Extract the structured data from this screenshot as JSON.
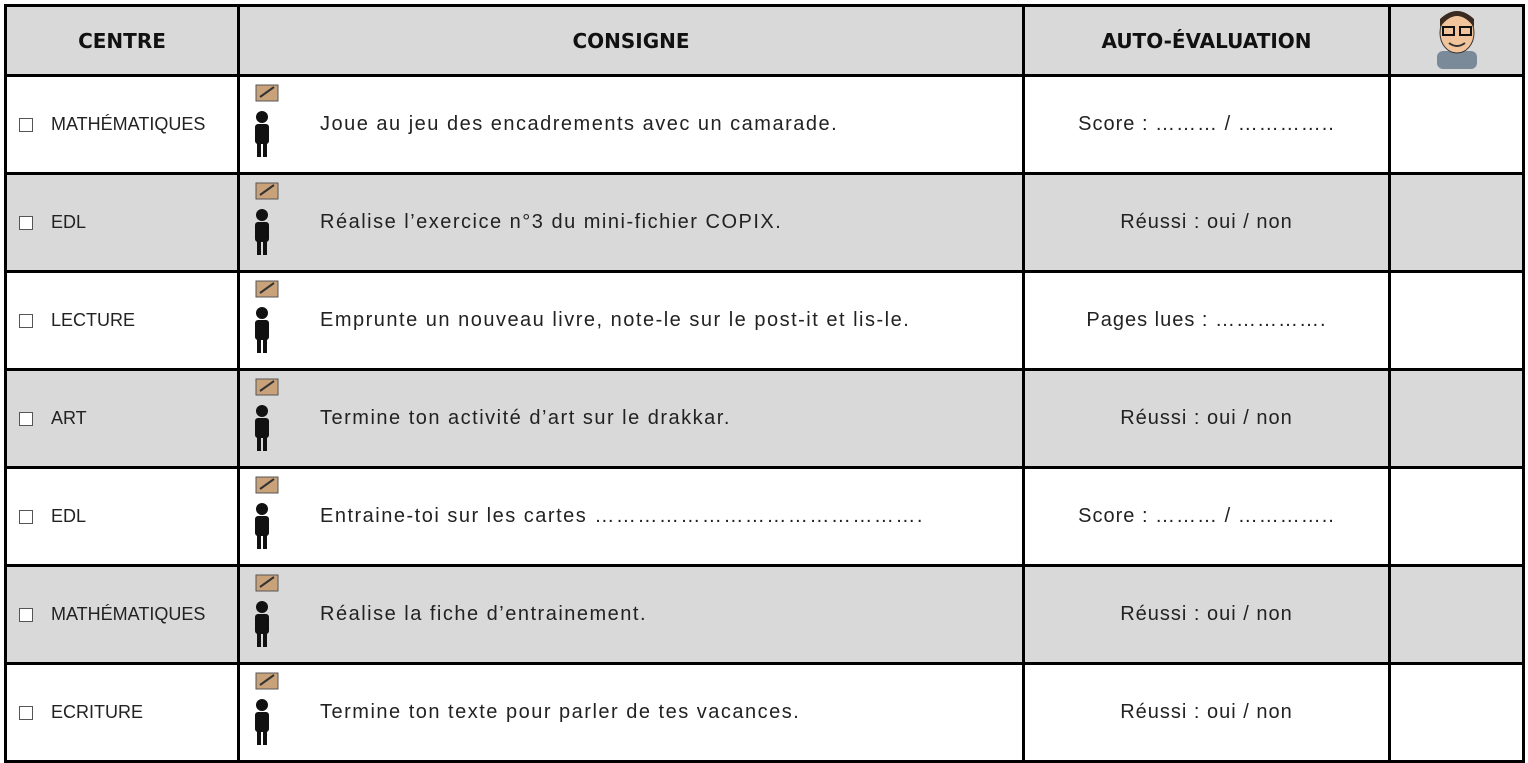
{
  "header": {
    "columns": [
      "CENTRE",
      "CONSIGNE",
      "AUTO-ÉVALUATION"
    ]
  },
  "table": {
    "rows": [
      [
        "MATHÉMATIQUES",
        "Joue au jeu des encadrements avec un camarade.",
        "Score :   ……… /  ………….."
      ],
      [
        "EDL",
        "Réalise l’exercice n°3 du mini-fichier COPIX.",
        "Réussi :  oui / non"
      ],
      [
        "LECTURE",
        "Emprunte un nouveau livre, note-le sur le post-it et lis-le.",
        "Pages lues : ……………."
      ],
      [
        "ART",
        "Termine ton activité d’art sur le drakkar.",
        "Réussi :  oui / non"
      ],
      [
        "EDL",
        "Entraine-toi sur les cartes ……………………………………….",
        "Score :   ……… /  ………….."
      ],
      [
        "MATHÉMATIQUES",
        "Réalise la fiche d’entrainement.",
        "Réussi :  oui / non"
      ],
      [
        "ECRITURE",
        "Termine ton texte pour parler de tes vacances.",
        "Réussi :  oui / non"
      ]
    ]
  }
}
